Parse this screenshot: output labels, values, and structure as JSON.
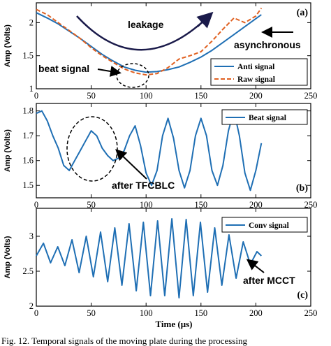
{
  "chart_data": [
    {
      "type": "line",
      "panel_label": "(a)",
      "ylabel": "Amp (Volts)",
      "xlim": [
        0,
        250
      ],
      "ylim": [
        1,
        2.3
      ],
      "x_ticks": [
        "0",
        "50",
        "100",
        "150",
        "200",
        "250"
      ],
      "y_ticks": [
        "1",
        "1.5",
        "2"
      ],
      "legend": "top-right",
      "series": [
        {
          "name": "Anti signal",
          "color": "#1f6fb4",
          "style": "solid",
          "x": [
            0,
            10,
            20,
            30,
            40,
            50,
            60,
            70,
            80,
            90,
            100,
            110,
            120,
            130,
            140,
            150,
            160,
            170,
            180,
            190,
            200,
            205
          ],
          "y": [
            2.15,
            2.07,
            1.98,
            1.87,
            1.76,
            1.64,
            1.52,
            1.42,
            1.33,
            1.28,
            1.25,
            1.26,
            1.29,
            1.33,
            1.4,
            1.48,
            1.58,
            1.7,
            1.82,
            1.94,
            2.06,
            2.12
          ]
        },
        {
          "name": "Raw signal",
          "color": "#e06020",
          "style": "dashed",
          "x": [
            0,
            10,
            20,
            30,
            40,
            50,
            60,
            70,
            80,
            90,
            100,
            110,
            120,
            130,
            140,
            150,
            160,
            170,
            180,
            190,
            200,
            205
          ],
          "y": [
            2.2,
            2.12,
            2.0,
            1.88,
            1.76,
            1.62,
            1.5,
            1.4,
            1.3,
            1.24,
            1.21,
            1.23,
            1.32,
            1.45,
            1.5,
            1.56,
            1.72,
            1.9,
            2.07,
            2.0,
            2.1,
            2.22
          ]
        }
      ],
      "annotations": [
        {
          "text": "leakage"
        },
        {
          "text": "asynchronous"
        },
        {
          "text": "beat signal"
        }
      ]
    },
    {
      "type": "line",
      "panel_label": "(b)",
      "ylabel": "Amp (Volts)",
      "xlim": [
        0,
        250
      ],
      "ylim": [
        1.45,
        1.83
      ],
      "x_ticks": [
        "0",
        "50",
        "100",
        "150",
        "200",
        "250"
      ],
      "y_ticks": [
        "1.5",
        "1.6",
        "1.7",
        "1.8"
      ],
      "legend": "top-right",
      "series": [
        {
          "name": "Beat signal",
          "color": "#1f6fb4",
          "style": "solid",
          "x": [
            0,
            5,
            10,
            15,
            20,
            25,
            30,
            35,
            40,
            45,
            50,
            55,
            60,
            65,
            70,
            75,
            80,
            85,
            90,
            95,
            100,
            105,
            110,
            115,
            120,
            125,
            130,
            135,
            140,
            145,
            150,
            155,
            160,
            165,
            170,
            175,
            180,
            185,
            190,
            195,
            200,
            205
          ],
          "y": [
            1.79,
            1.8,
            1.76,
            1.7,
            1.65,
            1.58,
            1.56,
            1.6,
            1.64,
            1.68,
            1.72,
            1.7,
            1.65,
            1.62,
            1.6,
            1.61,
            1.64,
            1.7,
            1.74,
            1.66,
            1.55,
            1.5,
            1.56,
            1.7,
            1.77,
            1.69,
            1.56,
            1.49,
            1.56,
            1.7,
            1.77,
            1.7,
            1.56,
            1.5,
            1.58,
            1.72,
            1.8,
            1.7,
            1.55,
            1.48,
            1.56,
            1.67
          ]
        }
      ],
      "annotations": [
        {
          "text": "after TFCBLC"
        }
      ]
    },
    {
      "type": "line",
      "panel_label": "(c)",
      "ylabel": "Amp (Volts)",
      "xlabel": "Time (μs)",
      "xlim": [
        0,
        250
      ],
      "ylim": [
        2,
        3.4
      ],
      "x_ticks": [
        "0",
        "50",
        "100",
        "150",
        "200",
        "250"
      ],
      "y_ticks": [
        "2",
        "2.5",
        "3"
      ],
      "legend": "top-right",
      "series": [
        {
          "name": "Conv signal",
          "color": "#1f6fb4",
          "style": "solid",
          "x": [
            0,
            6.5,
            13,
            19.5,
            26,
            32.5,
            39,
            45.5,
            52,
            58.5,
            65,
            71.5,
            78,
            84.5,
            91,
            97.5,
            104,
            110.5,
            117,
            123.5,
            130,
            136.5,
            143,
            149.5,
            156,
            162.5,
            169,
            175.5,
            182,
            188.5,
            195,
            201,
            205
          ],
          "y": [
            2.72,
            2.9,
            2.62,
            2.85,
            2.58,
            2.95,
            2.48,
            3.0,
            2.42,
            3.06,
            2.35,
            3.12,
            2.3,
            3.18,
            2.22,
            3.2,
            2.15,
            3.22,
            2.15,
            3.25,
            2.12,
            3.24,
            2.15,
            3.2,
            2.2,
            3.12,
            2.3,
            3.02,
            2.4,
            2.92,
            2.6,
            2.78,
            2.72
          ]
        }
      ],
      "annotations": [
        {
          "text": "after MCCT"
        }
      ]
    }
  ],
  "caption": "Fig. 12.   Temporal signals of the moving plate during the processing"
}
